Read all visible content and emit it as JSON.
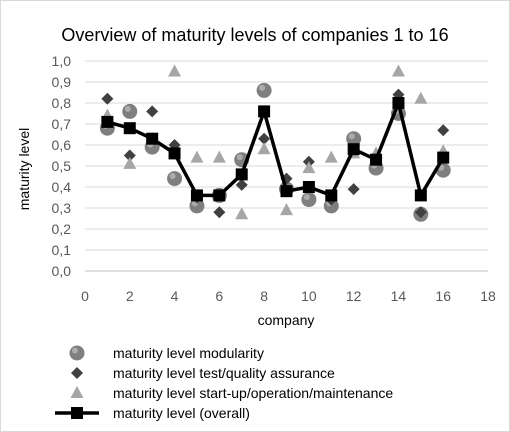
{
  "chart_data": {
    "type": "scatter",
    "title": "Overview of maturity levels of companies 1 to 16",
    "xlabel": "company",
    "ylabel": "maturity level",
    "xlim": [
      0,
      18
    ],
    "ylim": [
      0,
      1
    ],
    "x_ticks": [
      "0",
      "2",
      "4",
      "6",
      "8",
      "10",
      "12",
      "14",
      "16",
      "18"
    ],
    "y_ticks": [
      "0,0",
      "0,1",
      "0,2",
      "0,3",
      "0,4",
      "0,5",
      "0,6",
      "0,7",
      "0,8",
      "0,9",
      "1,0"
    ],
    "grid": "horizontal",
    "legend_position": "bottom",
    "x": [
      1,
      2,
      3,
      4,
      5,
      6,
      7,
      8,
      9,
      10,
      11,
      12,
      13,
      14,
      15,
      16
    ],
    "series": [
      {
        "name": "maturity level modularity",
        "marker": "circle",
        "color": "#7f7f7f",
        "values": [
          0.68,
          0.76,
          0.59,
          0.44,
          0.31,
          0.36,
          0.53,
          0.86,
          0.39,
          0.34,
          0.31,
          0.63,
          0.49,
          0.75,
          0.27,
          0.48
        ]
      },
      {
        "name": "maturity level test/quality assurance",
        "marker": "diamond",
        "color": "#404040",
        "values": [
          0.82,
          0.55,
          0.76,
          0.6,
          0.35,
          0.28,
          0.41,
          0.63,
          0.44,
          0.52,
          0.34,
          0.39,
          0.53,
          0.84,
          0.28,
          0.67
        ]
      },
      {
        "name": "maturity level start-up/operation/maintenance",
        "marker": "triangle",
        "color": "#a6a6a6",
        "values": [
          0.74,
          0.51,
          0.63,
          0.95,
          0.54,
          0.54,
          0.27,
          0.58,
          0.29,
          0.49,
          0.54,
          0.56,
          0.56,
          0.95,
          0.82,
          0.57
        ]
      },
      {
        "name": "maturity level (overall)",
        "marker": "square",
        "line": true,
        "color": "#000000",
        "values": [
          0.71,
          0.68,
          0.63,
          0.56,
          0.36,
          0.36,
          0.46,
          0.76,
          0.38,
          0.4,
          0.36,
          0.58,
          0.53,
          0.8,
          0.36,
          0.54
        ]
      }
    ]
  }
}
